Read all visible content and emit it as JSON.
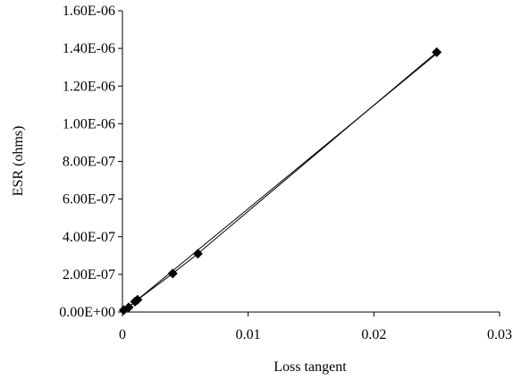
{
  "chart_data": {
    "type": "scatter",
    "xlabel": "Loss tangent",
    "ylabel": "ESR (ohms)",
    "xlim": [
      0,
      0.03
    ],
    "ylim": [
      0,
      1.6e-06
    ],
    "x_ticks": [
      {
        "value": 0,
        "label": "0"
      },
      {
        "value": 0.01,
        "label": "0.01"
      },
      {
        "value": 0.02,
        "label": "0.02"
      },
      {
        "value": 0.03,
        "label": "0.03"
      }
    ],
    "y_ticks": [
      {
        "value": 0,
        "label": "0.00E+00"
      },
      {
        "value": 2e-07,
        "label": "2.00E-07"
      },
      {
        "value": 4e-07,
        "label": "4.00E-07"
      },
      {
        "value": 6e-07,
        "label": "6.00E-07"
      },
      {
        "value": 8e-07,
        "label": "8.00E-07"
      },
      {
        "value": 1e-06,
        "label": "1.00E-06"
      },
      {
        "value": 1.2e-06,
        "label": "1.20E-06"
      },
      {
        "value": 1.4e-06,
        "label": "1.40E-06"
      },
      {
        "value": 1.6e-06,
        "label": "1.60E-06"
      }
    ],
    "grid": false,
    "legend": "none",
    "series": [
      {
        "marker": "diamond",
        "color": "#000000",
        "connected": true,
        "x": [
          0.0001,
          0.0005,
          0.001,
          0.0012,
          0.004,
          0.006,
          0.025
        ],
        "y": [
          1e-08,
          2.5e-08,
          5.5e-08,
          6.5e-08,
          2.05e-07,
          3.1e-07,
          1.38e-06
        ]
      }
    ],
    "trendline": {
      "type": "linear",
      "color": "#000000",
      "x": [
        0,
        0.025
      ],
      "y": [
        0,
        1.372e-06
      ]
    }
  }
}
